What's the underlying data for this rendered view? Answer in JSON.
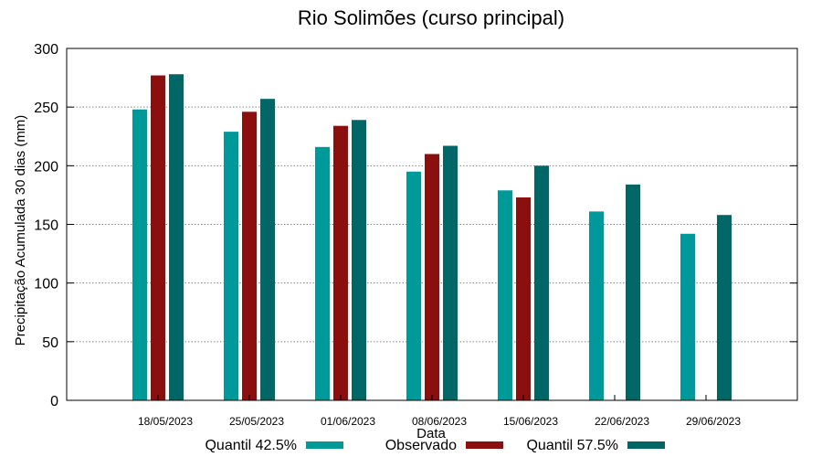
{
  "chart_data": {
    "type": "bar",
    "title": "Rio Solimões (curso principal)",
    "xlabel": "Data",
    "ylabel": "Precipitação Acumulada 30 dias (mm)",
    "ylim": [
      0,
      300
    ],
    "yticks": [
      0,
      50,
      100,
      150,
      200,
      250,
      300
    ],
    "grid": true,
    "legend_position": "bottom",
    "categories": [
      "18/05/2023",
      "25/05/2023",
      "01/06/2023",
      "08/06/2023",
      "15/06/2023",
      "22/06/2023",
      "29/06/2023"
    ],
    "series": [
      {
        "name": "Quantil 42.5%",
        "color": "#009999",
        "values": [
          248,
          229,
          216,
          195,
          179,
          161,
          142
        ]
      },
      {
        "name": "Observado",
        "color": "#8B0F0F",
        "values": [
          277,
          246,
          234,
          210,
          173,
          null,
          null
        ]
      },
      {
        "name": "Quantil 57.5%",
        "color": "#006666",
        "values": [
          278,
          257,
          239,
          217,
          200,
          184,
          158
        ]
      }
    ]
  }
}
